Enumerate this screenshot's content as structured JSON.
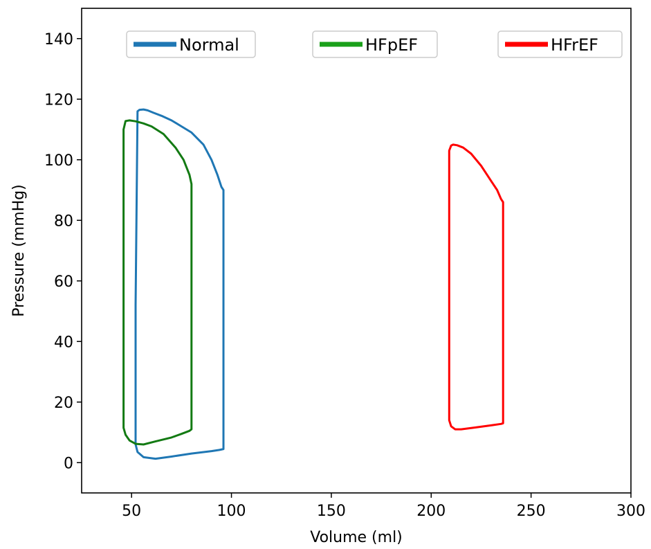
{
  "chart_data": {
    "type": "line",
    "xlabel": "Volume (ml)",
    "ylabel": "Pressure (mmHg)",
    "xlim": [
      25,
      300
    ],
    "ylim": [
      -10,
      150
    ],
    "xticks": [
      50,
      100,
      150,
      200,
      250,
      300
    ],
    "yticks": [
      0,
      20,
      40,
      60,
      80,
      100,
      120,
      140
    ],
    "grid": false,
    "legend_placement": "top, separate boxes",
    "series": [
      {
        "name": "Normal",
        "color": "#1f77b4",
        "x": [
          52,
          53,
          54,
          56,
          58,
          61,
          65,
          70,
          75,
          80,
          86,
          90,
          93,
          95,
          96,
          96,
          96,
          94,
          90,
          80,
          70,
          62,
          56,
          53,
          52,
          52
        ],
        "y": [
          52,
          116,
          116.5,
          116.6,
          116.3,
          115.5,
          114.5,
          113,
          111,
          109,
          105,
          100,
          95,
          91,
          90,
          30,
          4.5,
          4.2,
          3.8,
          3.0,
          2.0,
          1.3,
          1.8,
          3.5,
          6,
          52
        ]
      },
      {
        "name": "HFpEF",
        "color": "#137a13",
        "legend_color": "#1aa01a",
        "x": [
          46,
          46,
          47,
          49,
          52,
          56,
          60,
          66,
          72,
          76,
          79,
          80,
          80,
          80,
          79,
          75,
          70,
          62,
          56,
          52,
          49,
          47,
          46,
          46
        ],
        "y": [
          95,
          110,
          112.8,
          113,
          112.7,
          112,
          111,
          108.5,
          104,
          100,
          95,
          92,
          50,
          11,
          10.5,
          9.5,
          8.3,
          7.0,
          6.0,
          6.2,
          7.3,
          9.2,
          11.5,
          95
        ]
      },
      {
        "name": "HFrEF",
        "color": "#ff0000",
        "x": [
          209,
          209,
          210,
          211,
          213,
          216,
          220,
          225,
          230,
          233,
          235,
          236,
          236,
          236,
          235,
          230,
          222,
          215,
          212,
          210,
          209,
          209
        ],
        "y": [
          92,
          103,
          104.7,
          105,
          104.8,
          104,
          102,
          98,
          93,
          90,
          87,
          86,
          74,
          13,
          12.8,
          12.3,
          11.6,
          11,
          11,
          12,
          14,
          92
        ]
      }
    ]
  }
}
